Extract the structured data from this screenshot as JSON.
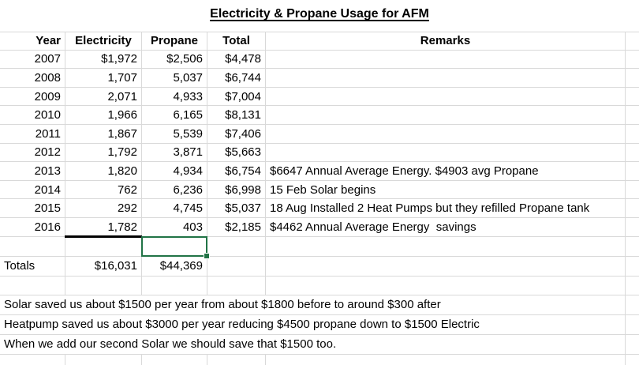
{
  "title": "Electricity & Propane Usage for AFM",
  "colors": {
    "gridline": "#d9d9d9",
    "selection_border": "#217346",
    "sum_border": "#000000",
    "text": "#000000",
    "background": "#ffffff"
  },
  "table": {
    "headers": [
      "Year",
      "Electricity",
      "Propane",
      "Total",
      "Remarks"
    ],
    "rows": [
      {
        "year": "2007",
        "electricity": "$1,972",
        "propane": "$2,506",
        "total": "$4,478",
        "remark": ""
      },
      {
        "year": "2008",
        "electricity": "1,707",
        "propane": "5,037",
        "total": "$6,744",
        "remark": ""
      },
      {
        "year": "2009",
        "electricity": "2,071",
        "propane": "4,933",
        "total": "$7,004",
        "remark": ""
      },
      {
        "year": "2010",
        "electricity": "1,966",
        "propane": "6,165",
        "total": "$8,131",
        "remark": ""
      },
      {
        "year": "2011",
        "electricity": "1,867",
        "propane": "5,539",
        "total": "$7,406",
        "remark": ""
      },
      {
        "year": "2012",
        "electricity": "1,792",
        "propane": "3,871",
        "total": "$5,663",
        "remark": ""
      },
      {
        "year": "2013",
        "electricity": "1,820",
        "propane": "4,934",
        "total": "$6,754",
        "remark": "$6647 Annual Average Energy. $4903 avg Propane"
      },
      {
        "year": "2014",
        "electricity": "762",
        "propane": "6,236",
        "total": "$6,998",
        "remark": "15 Feb Solar begins"
      },
      {
        "year": "2015",
        "electricity": "292",
        "propane": "4,745",
        "total": "$5,037",
        "remark": "18 Aug Installed 2 Heat Pumps but they refilled Propane tank"
      },
      {
        "year": "2016",
        "electricity": "1,782",
        "propane": "403",
        "total": "$2,185",
        "remark": "$4462 Annual Average Energy  savings"
      }
    ],
    "totals": {
      "label": "Totals",
      "electricity": "$16,031",
      "propane": "$44,369"
    }
  },
  "notes": [
    "Solar saved us about $1500 per year from about $1800 before to around $300 after",
    "Heatpump saved us about $3000 per year reducing $4500 propane down to $1500 Electric",
    "When we add our second Solar we should save that $1500 too."
  ]
}
